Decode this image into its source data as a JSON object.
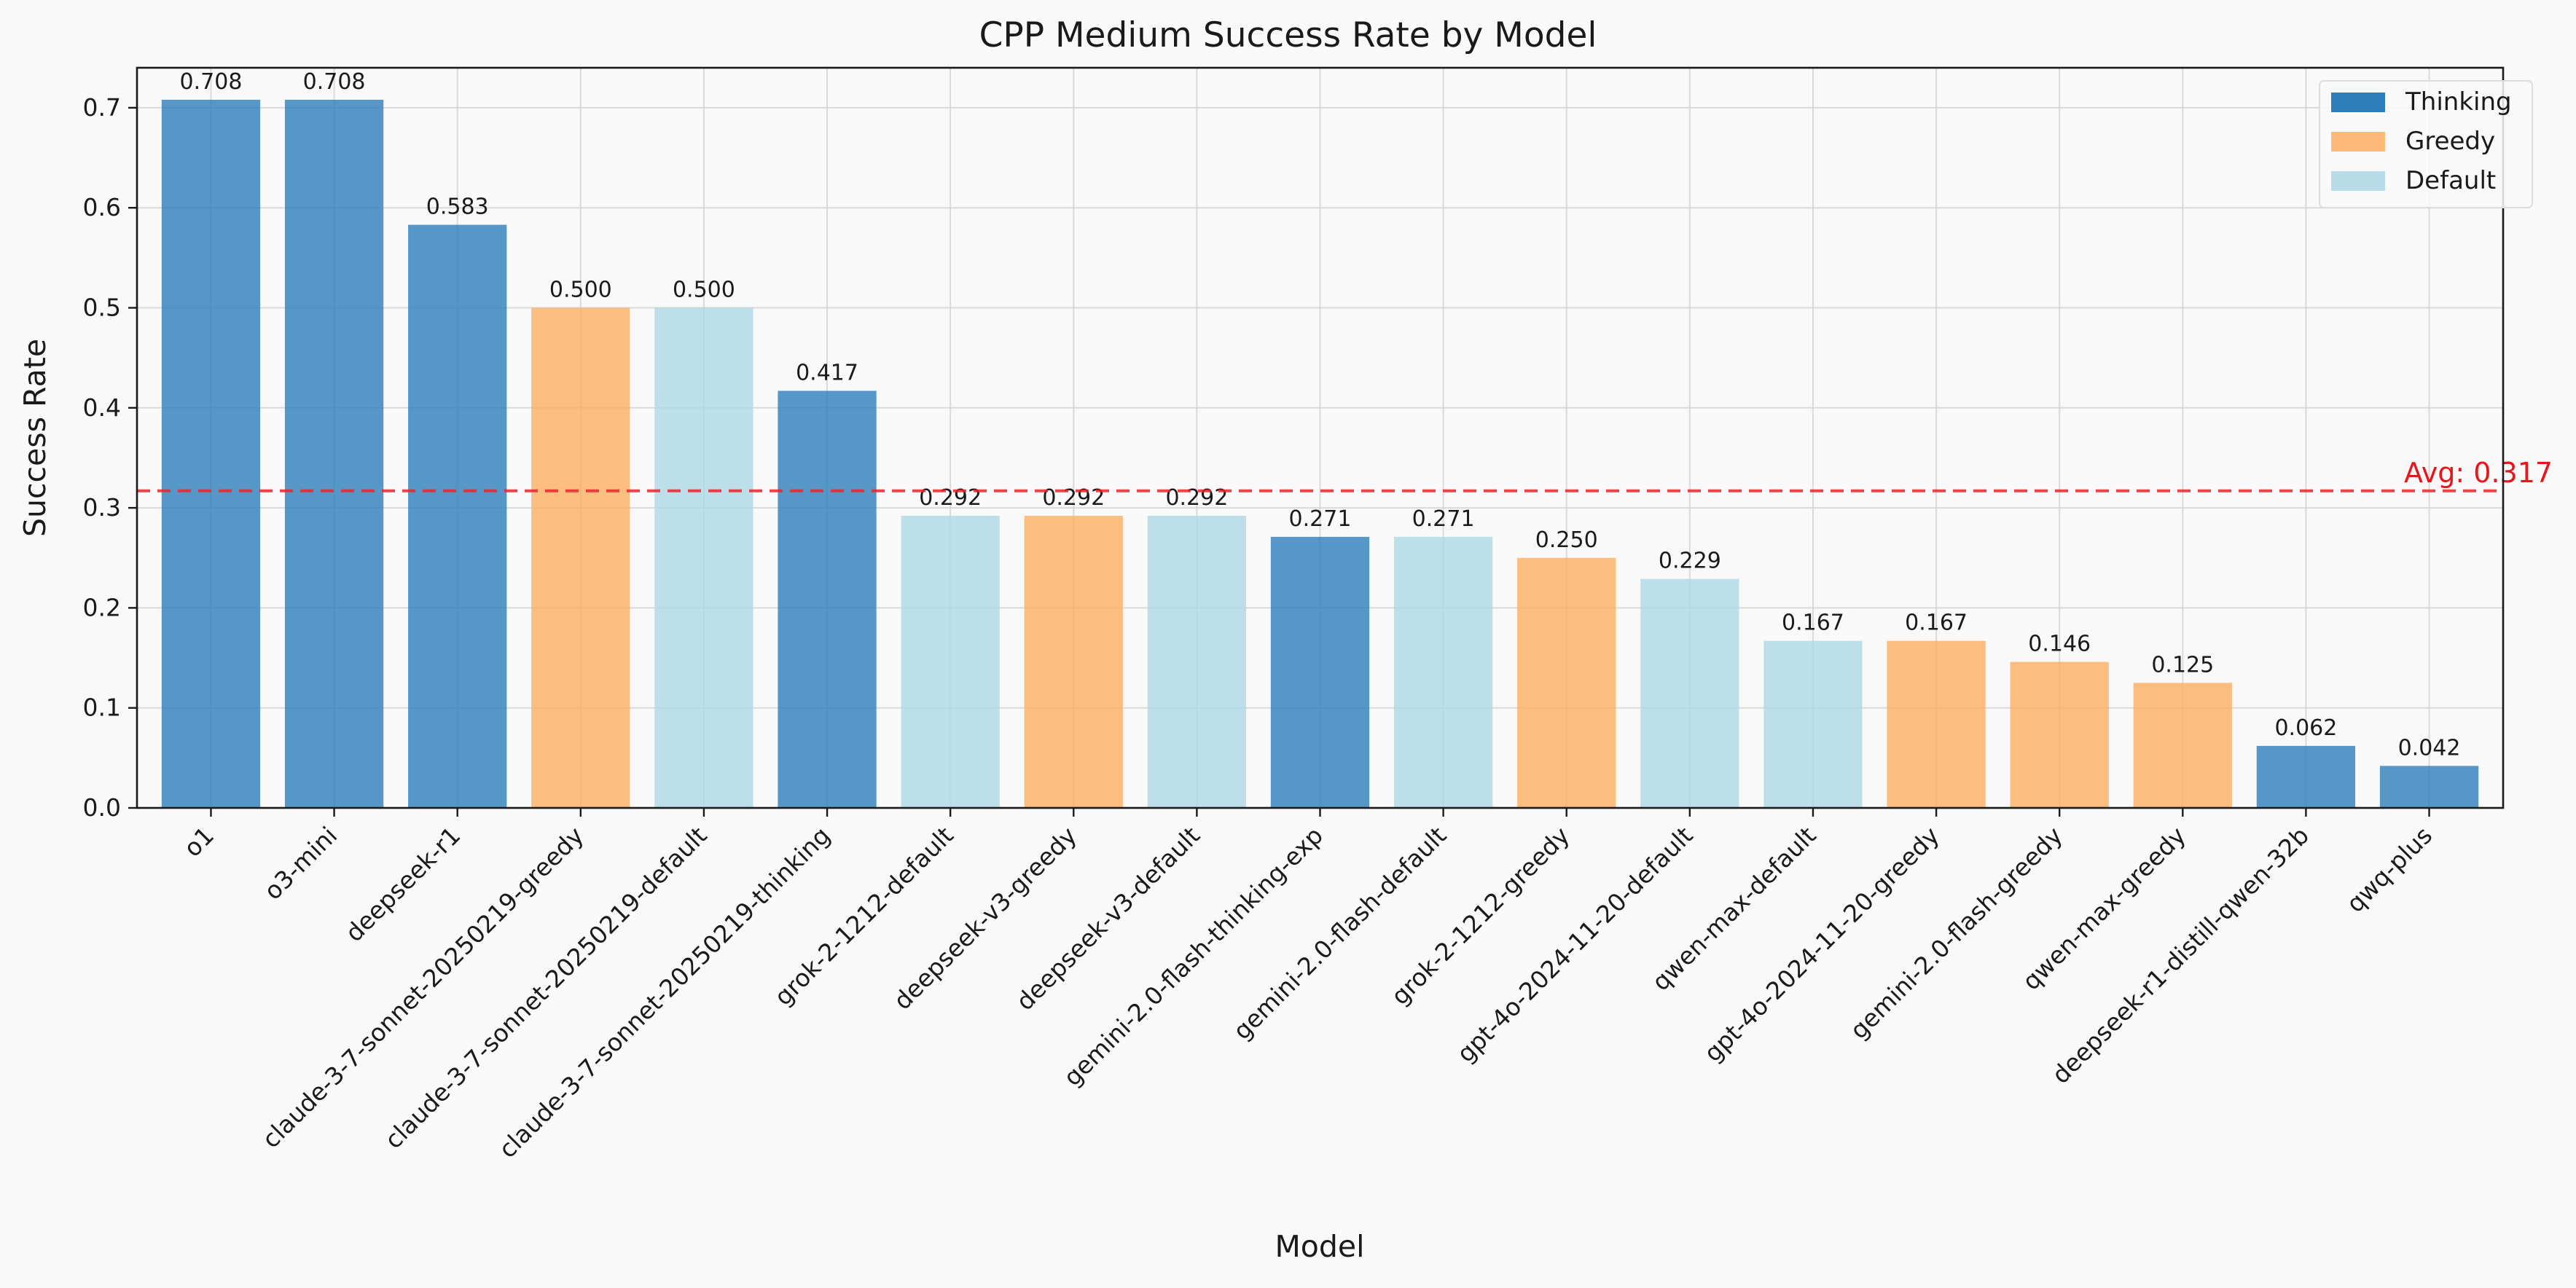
{
  "chart_data": {
    "type": "bar",
    "title": "CPP Medium Success Rate by Model",
    "xlabel": "Model",
    "ylabel": "Success Rate",
    "ylim": [
      0,
      0.74
    ],
    "yticks": [
      0.0,
      0.1,
      0.2,
      0.3,
      0.4,
      0.5,
      0.6,
      0.7
    ],
    "ytick_labels": [
      "0.0",
      "0.1",
      "0.2",
      "0.3",
      "0.4",
      "0.5",
      "0.6",
      "0.7"
    ],
    "grid": true,
    "legend_position": "top-right",
    "groups": [
      {
        "name": "Thinking",
        "color": "#2e7ebc"
      },
      {
        "name": "Greedy",
        "color": "#fdae61"
      },
      {
        "name": "Default",
        "color": "#add8e6"
      }
    ],
    "categories": [
      "o1",
      "o3-mini",
      "deepseek-r1",
      "claude-3-7-sonnet-20250219-greedy",
      "claude-3-7-sonnet-20250219-default",
      "claude-3-7-sonnet-20250219-thinking",
      "grok-2-1212-default",
      "deepseek-v3-greedy",
      "deepseek-v3-default",
      "gemini-2.0-flash-thinking-exp",
      "gemini-2.0-flash-default",
      "grok-2-1212-greedy",
      "gpt-4o-2024-11-20-default",
      "qwen-max-default",
      "gpt-4o-2024-11-20-greedy",
      "gemini-2.0-flash-greedy",
      "qwen-max-greedy",
      "deepseek-r1-distill-qwen-32b",
      "qwq-plus"
    ],
    "values": [
      0.708,
      0.708,
      0.583,
      0.5,
      0.5,
      0.417,
      0.292,
      0.292,
      0.292,
      0.271,
      0.271,
      0.25,
      0.229,
      0.167,
      0.167,
      0.146,
      0.125,
      0.062,
      0.042
    ],
    "value_labels": [
      "0.708",
      "0.708",
      "0.583",
      "0.500",
      "0.500",
      "0.417",
      "0.292",
      "0.292",
      "0.292",
      "0.271",
      "0.271",
      "0.250",
      "0.229",
      "0.167",
      "0.167",
      "0.146",
      "0.125",
      "0.062",
      "0.042"
    ],
    "bar_groups": [
      "Thinking",
      "Thinking",
      "Thinking",
      "Greedy",
      "Default",
      "Thinking",
      "Default",
      "Greedy",
      "Default",
      "Thinking",
      "Default",
      "Greedy",
      "Default",
      "Default",
      "Greedy",
      "Greedy",
      "Greedy",
      "Thinking",
      "Thinking"
    ],
    "average": {
      "value": 0.317,
      "label": "Avg: 0.317",
      "color": "#e8262a"
    }
  }
}
